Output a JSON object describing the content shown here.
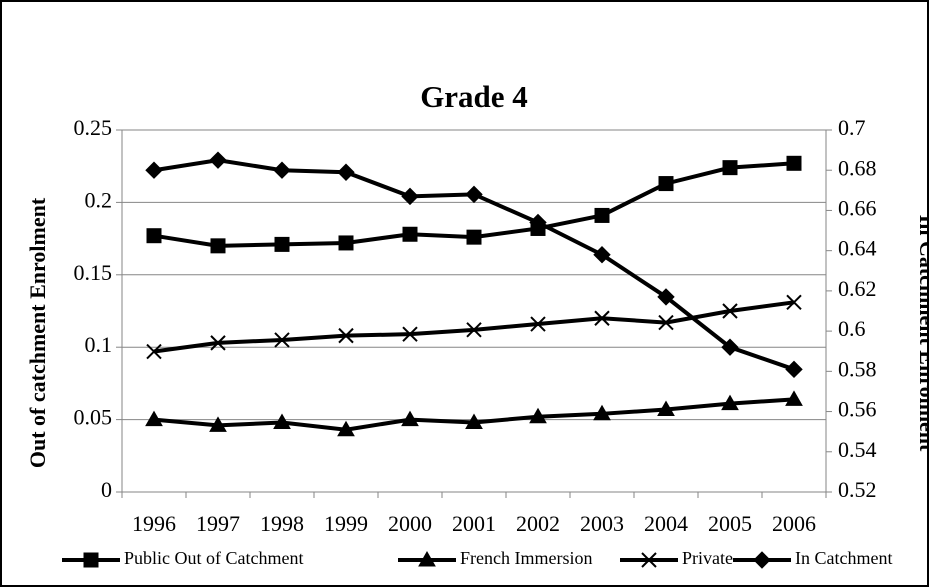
{
  "chart_data": {
    "type": "line",
    "title": "Grade 4",
    "categories": [
      "1996",
      "1997",
      "1998",
      "1999",
      "2000",
      "2001",
      "2002",
      "2003",
      "2004",
      "2005",
      "2006"
    ],
    "ylabel": "Out of catchment Enrolment",
    "y2label": "In Catchment Enrolment",
    "ylim": [
      0,
      0.25
    ],
    "yticks": [
      0,
      0.05,
      0.1,
      0.15,
      0.2,
      0.25
    ],
    "y2lim": [
      0.52,
      0.7
    ],
    "y2ticks": [
      0.52,
      0.54,
      0.56,
      0.58,
      0.6,
      0.62,
      0.64,
      0.66,
      0.68,
      0.7
    ],
    "grid": true,
    "legend": "bottom",
    "series": [
      {
        "name": "Public Out of Catchment",
        "color": "#000000",
        "marker": "square",
        "values": [
          0.177,
          0.17,
          0.171,
          0.172,
          0.178,
          0.176,
          0.182,
          0.191,
          0.213,
          0.224,
          0.227
        ]
      },
      {
        "name": "French Immersion",
        "color": "#000000",
        "marker": "triangle",
        "values": [
          0.05,
          0.046,
          0.048,
          0.043,
          0.05,
          0.048,
          0.052,
          0.054,
          0.057,
          0.061,
          0.064
        ]
      },
      {
        "name": "Private",
        "color": "#000000",
        "marker": "x",
        "values": [
          0.097,
          0.103,
          0.105,
          0.108,
          0.109,
          0.112,
          0.116,
          0.12,
          0.117,
          0.125,
          0.131
        ]
      },
      {
        "name": "In Catchment",
        "color": "#000000",
        "marker": "diamond",
        "axis": "y2",
        "values": [
          0.68,
          0.685,
          0.68,
          0.679,
          0.667,
          0.668,
          0.654,
          0.638,
          0.617,
          0.592,
          0.581
        ]
      }
    ]
  }
}
